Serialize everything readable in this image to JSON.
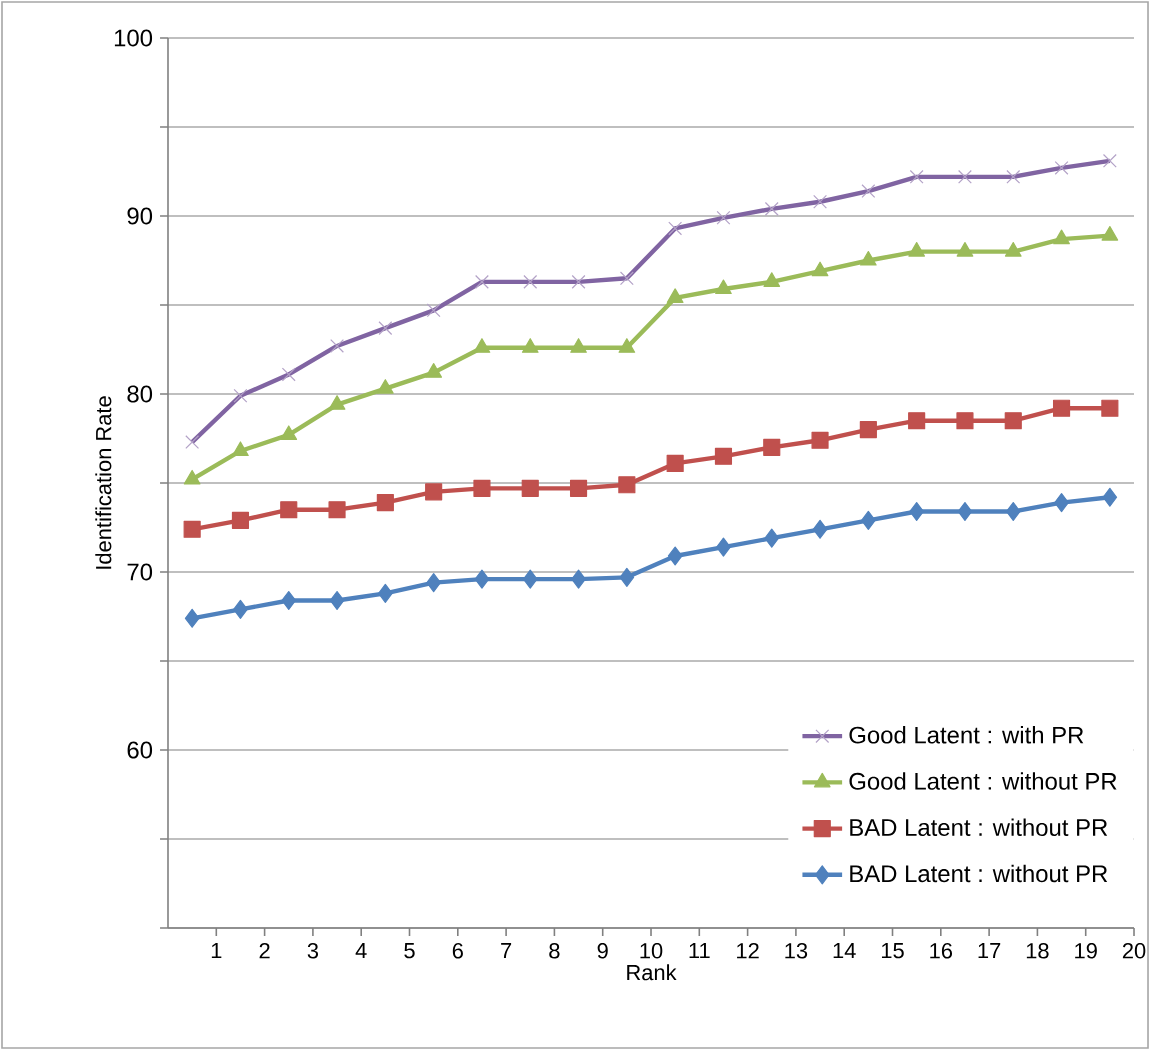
{
  "chart_data": {
    "type": "line",
    "xlabel": "Rank",
    "ylabel": "Identification Rate",
    "x": [
      0.5,
      1.5,
      2.5,
      3.5,
      4.5,
      5.5,
      6.5,
      7.5,
      8.5,
      9.5,
      10.5,
      11.5,
      12.5,
      13.5,
      14.5,
      15.5,
      16.5,
      17.5,
      18.5,
      19.5
    ],
    "xlim": [
      0,
      20
    ],
    "xticks": [
      1,
      2,
      3,
      4,
      5,
      6,
      7,
      8,
      9,
      10,
      11,
      12,
      13,
      14,
      15,
      16,
      17,
      18,
      19,
      20
    ],
    "ylim": [
      50,
      100
    ],
    "yticks": [
      {
        "value": 50,
        "label": null
      },
      {
        "value": 55,
        "label": null
      },
      60,
      {
        "value": 65,
        "label": null
      },
      70,
      {
        "value": 75,
        "label": null
      },
      80,
      {
        "value": 85,
        "label": null
      },
      90,
      {
        "value": 95,
        "label": null
      },
      100
    ],
    "grid": "y",
    "legend": "bottom right",
    "series": [
      {
        "name": "Good Latent : with PR",
        "color": "#8064a2",
        "marker": "cross",
        "values": [
          77.3,
          79.9,
          81.1,
          82.7,
          83.7,
          84.7,
          86.3,
          86.3,
          86.3,
          86.5,
          89.3,
          89.9,
          90.4,
          90.8,
          91.4,
          92.2,
          92.2,
          92.2,
          92.7,
          93.1
        ]
      },
      {
        "name": "Good Latent : without PR",
        "color": "#9bbb59",
        "marker": "triangle",
        "values": [
          75.2,
          76.8,
          77.7,
          79.4,
          80.3,
          81.2,
          82.6,
          82.6,
          82.6,
          82.6,
          85.4,
          85.9,
          86.3,
          86.9,
          87.5,
          88.0,
          88.0,
          88.0,
          88.7,
          88.9
        ]
      },
      {
        "name": "BAD Latent : without PR",
        "color": "#c0504d",
        "marker": "square",
        "values": [
          72.4,
          72.9,
          73.5,
          73.5,
          73.9,
          74.5,
          74.7,
          74.7,
          74.7,
          74.9,
          76.1,
          76.5,
          77.0,
          77.4,
          78.0,
          78.5,
          78.5,
          78.5,
          79.2,
          79.2
        ]
      },
      {
        "name": "BAD Latent : without PR",
        "color": "#4f81bd",
        "marker": "diamond",
        "values": [
          67.4,
          67.9,
          68.4,
          68.4,
          68.8,
          69.4,
          69.6,
          69.6,
          69.6,
          69.7,
          70.9,
          71.4,
          71.9,
          72.4,
          72.9,
          73.4,
          73.4,
          73.4,
          73.9,
          74.2
        ]
      }
    ]
  }
}
